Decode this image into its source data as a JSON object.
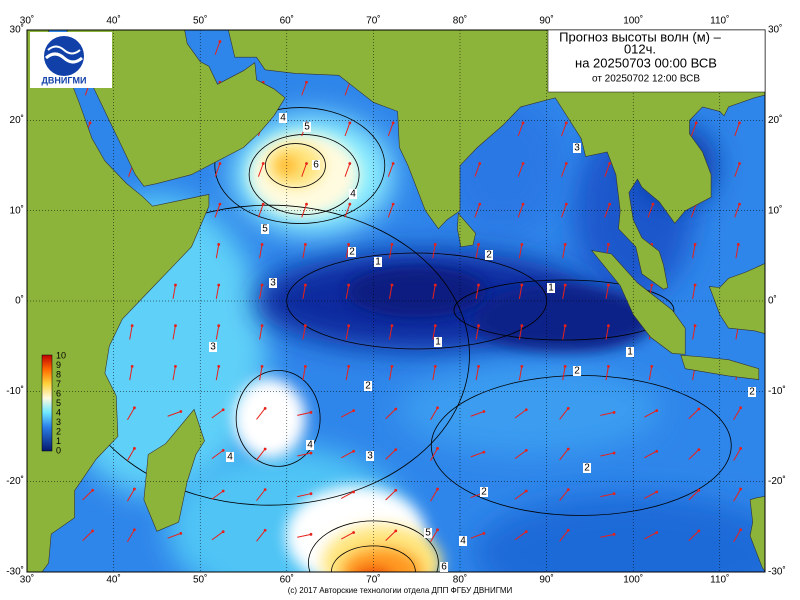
{
  "header": {
    "lines": [
      "Прогноз высоты волн (м) –",
      "012ч.",
      "на 20250703 00:00 ВСВ",
      "от 20250702 12:00 ВСВ"
    ]
  },
  "logo": {
    "text": "ДВНИГМИ"
  },
  "lon_labels": [
    "30˚",
    "40˚",
    "50˚",
    "60˚",
    "70˚",
    "80˚",
    "90˚",
    "100˚",
    "110˚"
  ],
  "lat_labels": [
    "30˚",
    "20˚",
    "10˚",
    "0˚",
    "-10˚",
    "-20˚",
    "-30˚"
  ],
  "colorbar_labels": [
    "10",
    "9",
    "8",
    "7",
    "6",
    "5",
    "4",
    "3",
    "2",
    "1",
    "0"
  ],
  "contour_labels": [
    "4",
    "5",
    "6",
    "4",
    "5",
    "2",
    "1",
    "3",
    "3",
    "1",
    "1",
    "1",
    "2",
    "2",
    "4",
    "4",
    "3",
    "2",
    "2",
    "3",
    "2",
    "2",
    "5",
    "4",
    "6"
  ],
  "footer": "(с) 2017 Авторские технологии отдела ДПП ФГБУ ДВНИГМИ"
}
